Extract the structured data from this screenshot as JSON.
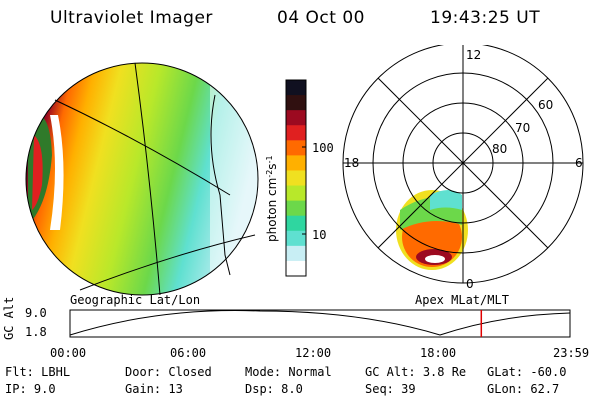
{
  "header": {
    "title": "Ultraviolet Imager",
    "date": "04 Oct 00",
    "time": "19:43:25 UT"
  },
  "colorbar": {
    "label": "photon cm",
    "label_exp1": "-2",
    "label_s": "s",
    "label_exp2": "-1",
    "ticks": [
      "100",
      "10"
    ],
    "colors": [
      "#ffffff",
      "#c8eef4",
      "#5fe0d0",
      "#2fd6a0",
      "#6cd84a",
      "#b8e82a",
      "#f0e020",
      "#ffb000",
      "#ff6a00",
      "#e02020",
      "#9c0a20",
      "#301010",
      "#101020"
    ]
  },
  "polar": {
    "hour_labels": [
      "12",
      "18",
      "6",
      "0"
    ],
    "lat_labels": [
      "60",
      "70",
      "80"
    ]
  },
  "map_labels": {
    "left": "Geographic Lat/Lon",
    "right": "Apex MLat/MLT"
  },
  "altitude_plot": {
    "axis_label": "GC Alt",
    "y_ticks": [
      "9.0",
      "1.8"
    ],
    "time_ticks": [
      "00:00",
      "06:00",
      "12:00",
      "18:00",
      "23:59"
    ],
    "current_time_fraction": 0.8226,
    "marker_color": "#e00000"
  },
  "info": {
    "row1": [
      {
        "label": "Flt:",
        "value": "LBHL"
      },
      {
        "label": "Door:",
        "value": "Closed"
      },
      {
        "label": "Mode:",
        "value": "Normal"
      },
      {
        "label": "GC Alt:",
        "value": "3.8 Re"
      },
      {
        "label": "GLat:",
        "value": "-60.0"
      }
    ],
    "row2": [
      {
        "label": "IP:",
        "value": "9.0"
      },
      {
        "label": "Gain:",
        "value": "13"
      },
      {
        "label": "Dsp:",
        "value": "8.0"
      },
      {
        "label": "Seq:",
        "value": "39"
      },
      {
        "label": "GLon:",
        "value": "62.7"
      }
    ]
  }
}
